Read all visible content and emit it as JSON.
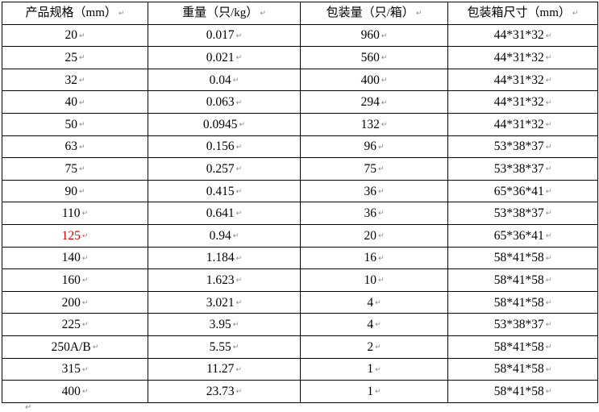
{
  "page": {
    "background_color": "#ffffff",
    "border_color": "#000000"
  },
  "ui": {
    "paragraph_mark": "↵",
    "paragraph_mark_color": "#8a8a8a",
    "highlight_color": "#e00000"
  },
  "table": {
    "headers": [
      "产品规格（mm）",
      "重量（只/kg）",
      "包装量（只/箱）",
      "包装箱尺寸（mm）"
    ],
    "rows": [
      {
        "spec": "20",
        "weight": "0.017",
        "qty": "960",
        "box": "44*31*32"
      },
      {
        "spec": "25",
        "weight": "0.021",
        "qty": "560",
        "box": "44*31*32"
      },
      {
        "spec": "32",
        "weight": "0.04",
        "qty": "400",
        "box": "44*31*32"
      },
      {
        "spec": "40",
        "weight": "0.063",
        "qty": "294",
        "box": "44*31*32"
      },
      {
        "spec": "50",
        "weight": "0.0945",
        "qty": "132",
        "box": "44*31*32"
      },
      {
        "spec": "63",
        "weight": "0.156",
        "qty": "96",
        "box": "53*38*37"
      },
      {
        "spec": "75",
        "weight": "0.257",
        "qty": "75",
        "box": "53*38*37"
      },
      {
        "spec": "90",
        "weight": "0.415",
        "qty": "36",
        "box": "65*36*41"
      },
      {
        "spec": "110",
        "weight": "0.641",
        "qty": "36",
        "box": "53*38*37"
      },
      {
        "spec": "125",
        "weight": "0.94",
        "qty": "20",
        "box": "65*36*41",
        "spec_color": "#e00000"
      },
      {
        "spec": "140",
        "weight": "1.184",
        "qty": "16",
        "box": "58*41*58"
      },
      {
        "spec": "160",
        "weight": "1.623",
        "qty": "10",
        "box": "58*41*58"
      },
      {
        "spec": "200",
        "weight": "3.021",
        "qty": "4",
        "box": "58*41*58"
      },
      {
        "spec": "225",
        "weight": "3.95",
        "qty": "4",
        "box": "53*38*37"
      },
      {
        "spec": "250A/B",
        "weight": "5.55",
        "qty": "2",
        "box": "58*41*58"
      },
      {
        "spec": "315",
        "weight": "11.27",
        "qty": "1",
        "box": "58*41*58"
      },
      {
        "spec": "400",
        "weight": "23.73",
        "qty": "1",
        "box": "58*41*58"
      }
    ]
  }
}
